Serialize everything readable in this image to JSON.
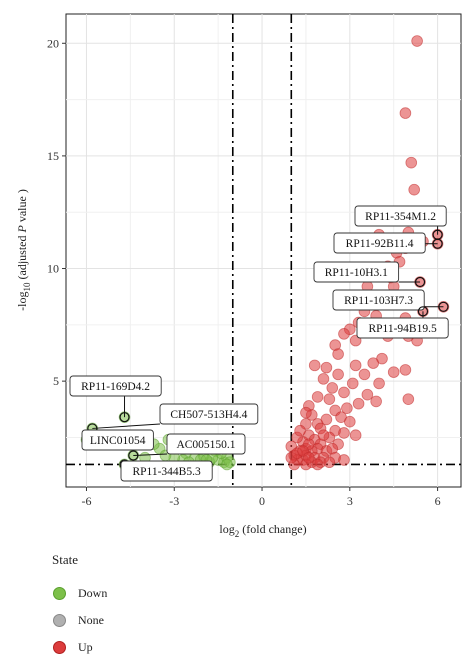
{
  "chart_data": {
    "type": "scatter",
    "xlabel_main": "log",
    "xlabel_sub": "2",
    "xlabel_rest": " (fold change)",
    "ylabel_prefix": "-log",
    "ylabel_sub": "10",
    "ylabel_mid": " (adjusted ",
    "ylabel_italic": "P",
    "ylabel_suffix": " value )",
    "xlim": [
      -6.7,
      6.8
    ],
    "ylim": [
      0.3,
      21.3
    ],
    "xticks": [
      -6,
      -3,
      0,
      3,
      6
    ],
    "yticks": [
      5,
      10,
      15,
      20
    ],
    "grid": true,
    "vlines": [
      -1,
      1
    ],
    "hline": 1.3,
    "colors": {
      "Down": "#7dc04a",
      "None": "#a8a8a8",
      "Up": "#dc3c3c"
    },
    "legend_title": "State",
    "legend_labels": [
      "Down",
      "None",
      "Up"
    ],
    "series": [
      {
        "name": "Up",
        "points": [
          [
            5.3,
            20.1
          ],
          [
            4.9,
            16.9
          ],
          [
            5.1,
            14.7
          ],
          [
            5.2,
            13.5
          ],
          [
            5.0,
            11.6
          ],
          [
            4.0,
            11.5
          ],
          [
            5.3,
            11.3
          ],
          [
            6.0,
            11.5
          ],
          [
            6.0,
            11.1
          ],
          [
            5.5,
            11.2
          ],
          [
            4.9,
            10.9
          ],
          [
            4.6,
            10.7
          ],
          [
            4.7,
            10.3
          ],
          [
            4.3,
            10.1
          ],
          [
            5.4,
            9.4
          ],
          [
            4.0,
            9.8
          ],
          [
            4.4,
            9.6
          ],
          [
            4.5,
            9.2
          ],
          [
            3.6,
            9.2
          ],
          [
            3.8,
            8.8
          ],
          [
            5.0,
            8.5
          ],
          [
            6.2,
            8.3
          ],
          [
            5.5,
            8.1
          ],
          [
            4.9,
            7.8
          ],
          [
            3.5,
            8.1
          ],
          [
            3.9,
            7.9
          ],
          [
            3.3,
            7.6
          ],
          [
            4.6,
            7.5
          ],
          [
            3.0,
            7.3
          ],
          [
            2.8,
            7.1
          ],
          [
            4.3,
            7.0
          ],
          [
            5.0,
            7.0
          ],
          [
            5.3,
            6.8
          ],
          [
            3.2,
            6.8
          ],
          [
            2.5,
            6.6
          ],
          [
            2.6,
            6.2
          ],
          [
            4.1,
            6.0
          ],
          [
            3.8,
            5.8
          ],
          [
            3.2,
            5.7
          ],
          [
            4.9,
            5.5
          ],
          [
            4.5,
            5.4
          ],
          [
            1.8,
            5.7
          ],
          [
            2.2,
            5.6
          ],
          [
            2.6,
            5.3
          ],
          [
            3.5,
            5.3
          ],
          [
            2.1,
            5.1
          ],
          [
            3.1,
            4.9
          ],
          [
            4.0,
            4.9
          ],
          [
            2.4,
            4.7
          ],
          [
            2.8,
            4.5
          ],
          [
            3.6,
            4.4
          ],
          [
            1.9,
            4.3
          ],
          [
            2.3,
            4.2
          ],
          [
            3.3,
            4.0
          ],
          [
            2.9,
            3.8
          ],
          [
            1.6,
            3.9
          ],
          [
            2.5,
            3.7
          ],
          [
            5.0,
            4.2
          ],
          [
            3.9,
            4.1
          ],
          [
            1.7,
            3.5
          ],
          [
            2.7,
            3.4
          ],
          [
            2.2,
            3.3
          ],
          [
            3.0,
            3.2
          ],
          [
            1.9,
            3.1
          ],
          [
            1.5,
            3.1
          ],
          [
            1.5,
            3.6
          ],
          [
            2.0,
            2.9
          ],
          [
            2.5,
            2.8
          ],
          [
            2.8,
            2.7
          ],
          [
            3.2,
            2.6
          ],
          [
            1.6,
            2.6
          ],
          [
            2.3,
            2.5
          ],
          [
            1.8,
            2.4
          ],
          [
            1.4,
            2.3
          ],
          [
            2.0,
            2.2
          ],
          [
            2.6,
            2.2
          ],
          [
            1.2,
            2.5
          ],
          [
            1.0,
            2.1
          ],
          [
            1.5,
            2.0
          ],
          [
            1.9,
            2.0
          ],
          [
            2.2,
            1.9
          ],
          [
            1.7,
            1.9
          ],
          [
            1.3,
            1.9
          ],
          [
            2.4,
            2.0
          ],
          [
            1.1,
            1.7
          ],
          [
            1.5,
            1.7
          ],
          [
            1.8,
            1.6
          ],
          [
            2.1,
            1.6
          ],
          [
            2.5,
            1.6
          ],
          [
            1.4,
            1.5
          ],
          [
            1.2,
            1.5
          ],
          [
            1.7,
            1.4
          ],
          [
            2.0,
            1.4
          ],
          [
            1.1,
            1.3
          ],
          [
            1.5,
            1.3
          ],
          [
            2.3,
            1.4
          ],
          [
            1.9,
            1.3
          ],
          [
            1.0,
            1.6
          ],
          [
            2.8,
            1.5
          ],
          [
            1.6,
            2.2
          ],
          [
            1.3,
            2.8
          ],
          [
            2.1,
            2.6
          ],
          [
            1.2,
            1.8
          ],
          [
            1.4,
            1.9
          ],
          [
            1.6,
            1.6
          ]
        ]
      },
      {
        "name": "Down",
        "points": [
          [
            -6.0,
            2.4
          ],
          [
            -5.8,
            2.9
          ],
          [
            -4.7,
            3.4
          ],
          [
            -4.4,
            1.7
          ],
          [
            -4.7,
            1.3
          ],
          [
            -1.6,
            1.9
          ],
          [
            -1.3,
            1.4
          ],
          [
            -1.5,
            1.5
          ],
          [
            -1.2,
            1.6
          ],
          [
            -1.8,
            1.4
          ],
          [
            -2.0,
            1.7
          ],
          [
            -2.3,
            1.6
          ],
          [
            -2.6,
            1.8
          ],
          [
            -2.9,
            2.0
          ],
          [
            -3.2,
            2.4
          ],
          [
            -2.7,
            1.5
          ],
          [
            -1.1,
            1.4
          ],
          [
            -1.4,
            1.8
          ],
          [
            -3.5,
            2.0
          ],
          [
            -2.1,
            1.5
          ],
          [
            -1.7,
            1.6
          ],
          [
            -3.7,
            2.2
          ],
          [
            -2.4,
            2.1
          ],
          [
            -3.0,
            1.6
          ],
          [
            -2.2,
            2.3
          ],
          [
            -1.9,
            1.5
          ],
          [
            -3.3,
            1.7
          ],
          [
            -4.0,
            1.6
          ],
          [
            -2.5,
            1.4
          ],
          [
            -1.2,
            1.3
          ]
        ]
      }
    ],
    "highlighted": [
      {
        "label": "RP11-354M1.2",
        "x": 6.0,
        "y": 11.5
      },
      {
        "label": "RP11-92B11.4",
        "x": 6.0,
        "y": 11.1
      },
      {
        "label": "RP11-10H3.1",
        "x": 5.4,
        "y": 9.4
      },
      {
        "label": "RP11-103H7.3",
        "x": 6.2,
        "y": 8.3
      },
      {
        "label": "RP11-94B19.5",
        "x": 5.5,
        "y": 8.1
      },
      {
        "label": "RP11-169D4.2",
        "x": -4.7,
        "y": 3.4
      },
      {
        "label": "CH507-513H4.4",
        "x": -5.8,
        "y": 2.9
      },
      {
        "label": "LINC01054",
        "x": -6.0,
        "y": 2.4
      },
      {
        "label": "AC005150.1",
        "x": -4.4,
        "y": 1.7
      },
      {
        "label": "RP11-344B5.3",
        "x": -4.7,
        "y": 1.3
      }
    ]
  }
}
